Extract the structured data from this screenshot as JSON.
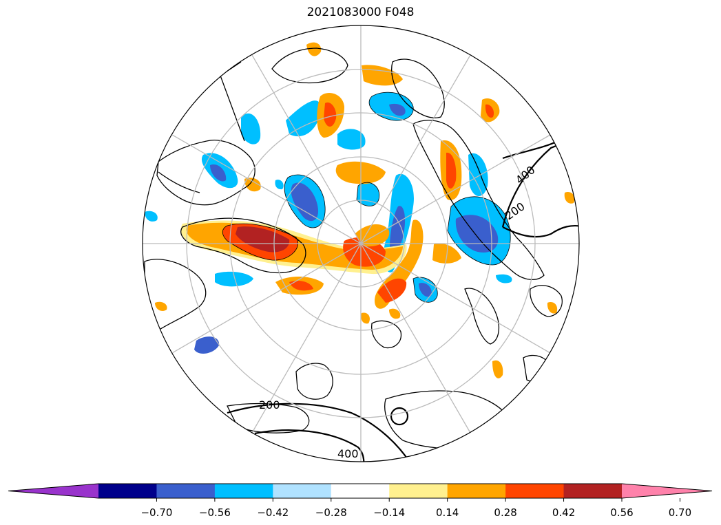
{
  "title": "2021083000 F048",
  "colorbar": {
    "colors": [
      "#9933cc",
      "#00008b",
      "#3a5fcd",
      "#00bfff",
      "#b0e2ff",
      "#ffffff",
      "#fff08f",
      "#ffa500",
      "#ff4500",
      "#b22222",
      "#ff82ab"
    ],
    "ticks": [
      "−0.70",
      "−0.56",
      "−0.42",
      "−0.28",
      "−0.14",
      "0.14",
      "0.28",
      "0.42",
      "0.56",
      "0.70"
    ]
  },
  "contour_labels": [
    "400",
    "200",
    "200",
    "400"
  ],
  "colors": {
    "grid": "#bbbbbb",
    "coast": "#000000",
    "neg_strong": "#3a5fcd",
    "neg": "#00bfff",
    "neg_weak": "#b0e2ff",
    "pos_weak": "#fff08f",
    "pos": "#ffa500",
    "pos_strong": "#ff4500",
    "pos_vstrong": "#b22222"
  }
}
